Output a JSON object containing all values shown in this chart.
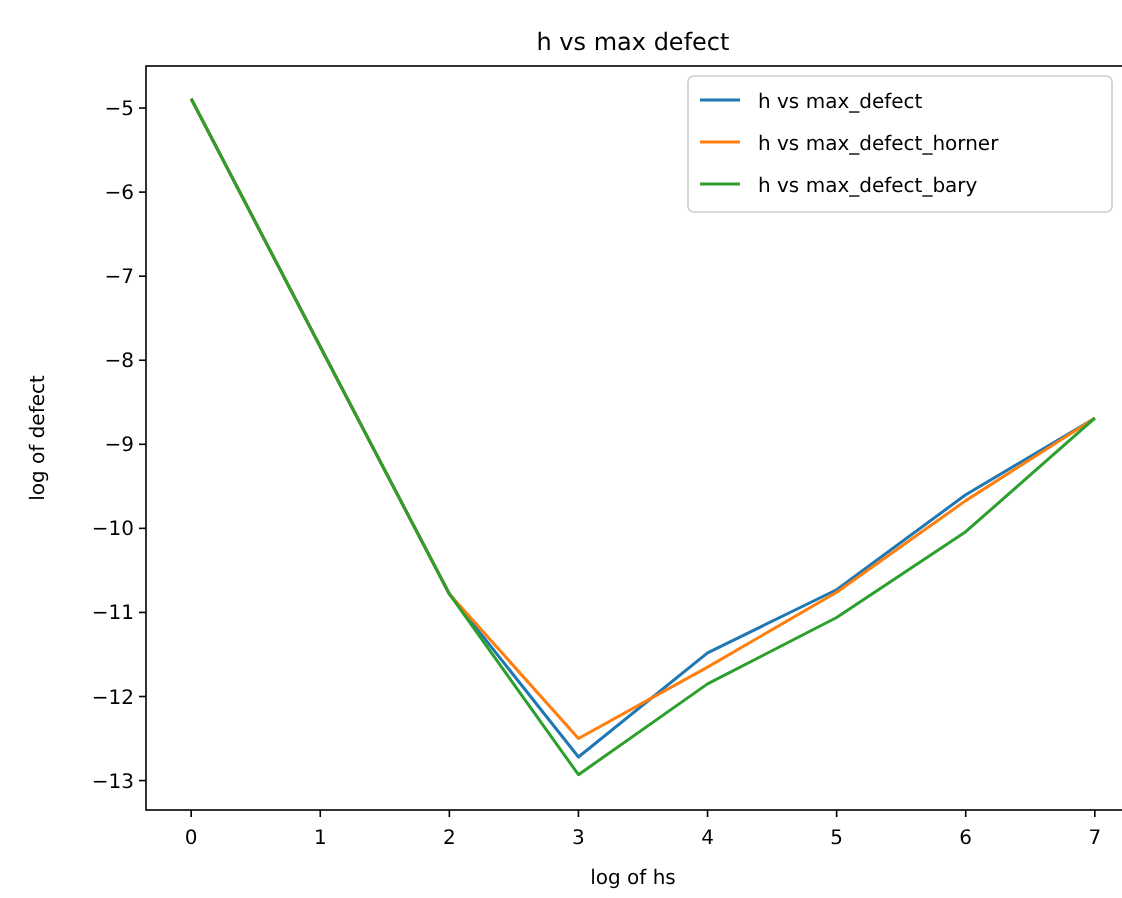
{
  "chart_data": {
    "type": "line",
    "title": "h vs max defect",
    "xlabel": "log of hs",
    "ylabel": "log of defect",
    "x": [
      0,
      1,
      2,
      3,
      4,
      5,
      6,
      7
    ],
    "series": [
      {
        "name": "h vs max_defect",
        "color": "#1f77b4",
        "values": [
          -4.89,
          -7.84,
          -10.78,
          -12.72,
          -11.48,
          -10.73,
          -9.6,
          -8.69
        ]
      },
      {
        "name": "h vs max_defect_horner",
        "color": "#ff7f0e",
        "values": [
          -4.89,
          -7.84,
          -10.78,
          -12.5,
          -11.65,
          -10.76,
          -9.67,
          -8.69
        ]
      },
      {
        "name": "h vs max_defect_bary",
        "color": "#2ca02c",
        "values": [
          -4.89,
          -7.84,
          -10.78,
          -12.93,
          -11.85,
          -11.06,
          -10.04,
          -8.69
        ]
      }
    ],
    "xlim": [
      -0.35,
      7.35
    ],
    "xticks": [
      0,
      1,
      2,
      3,
      4,
      5,
      6,
      7
    ],
    "ylim": [
      -13.35,
      -4.5
    ],
    "yticks": [
      -13,
      -12,
      -11,
      -10,
      -9,
      -8,
      -7,
      -6,
      -5
    ],
    "legend": "top right",
    "grid": false
  }
}
